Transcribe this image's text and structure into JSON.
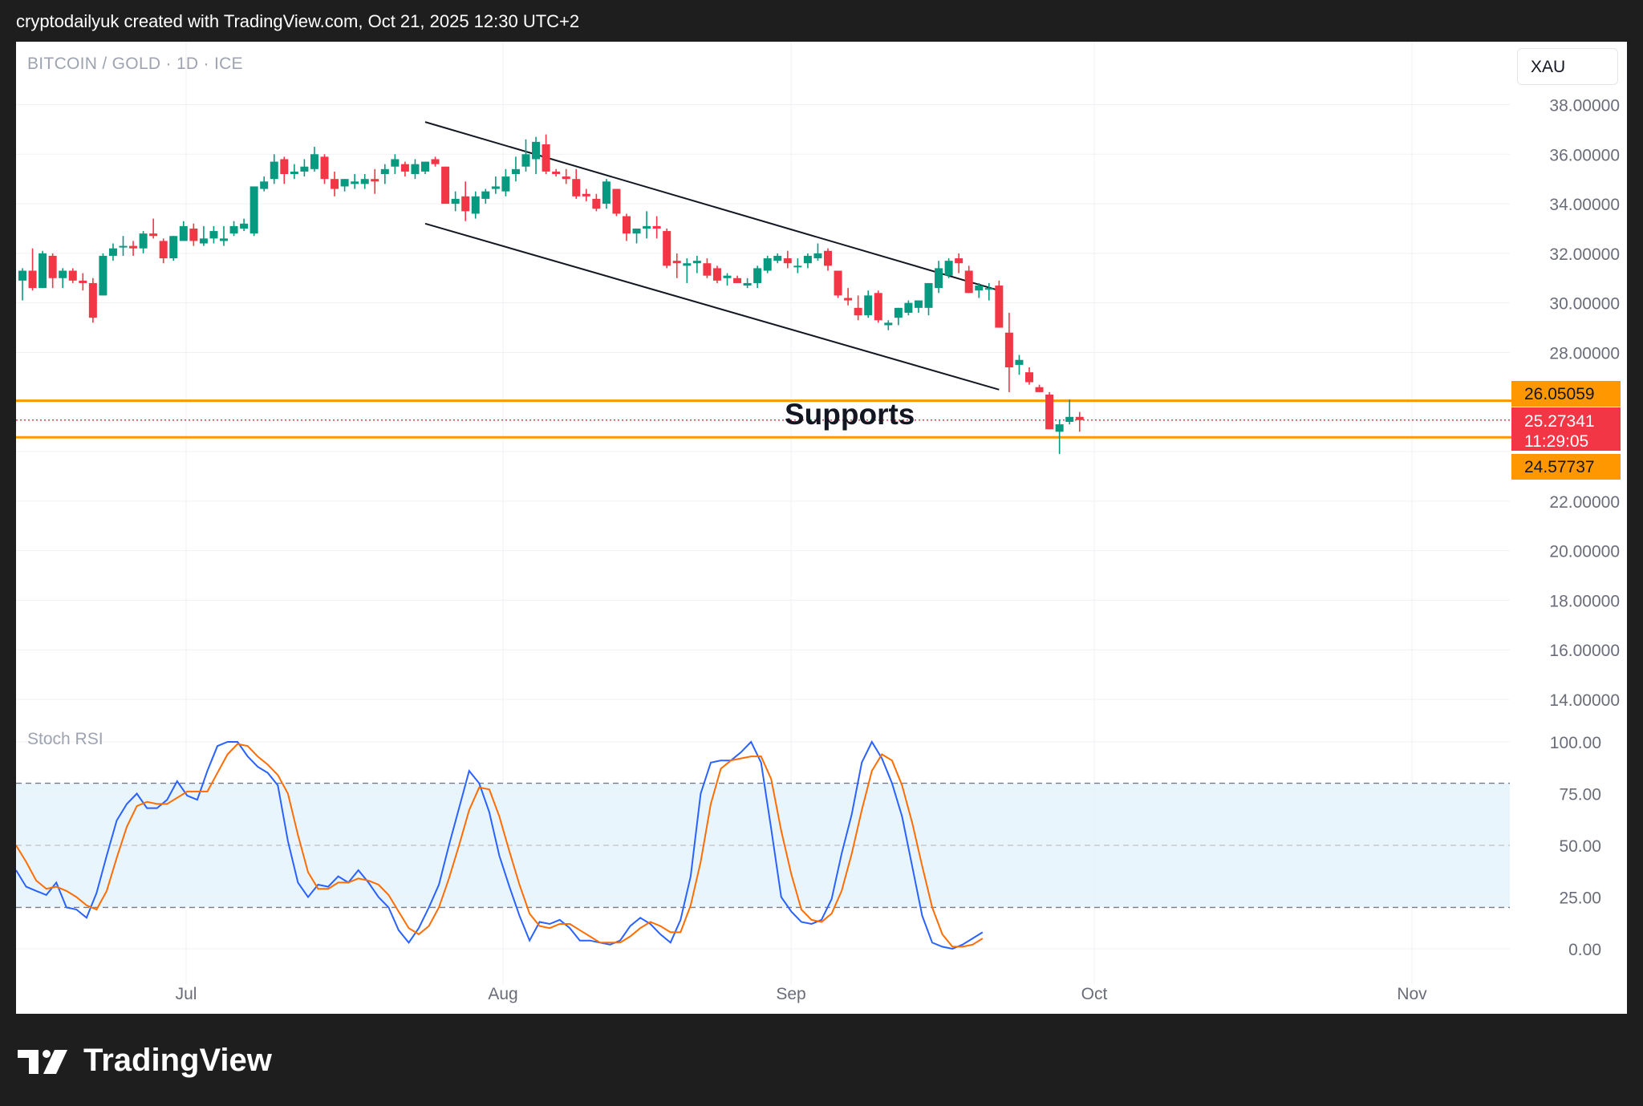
{
  "header": {
    "text": "cryptodailyuk created with TradingView.com, Oct 21, 2025 12:30 UTC+2"
  },
  "legend": {
    "symbol": "BITCOIN / GOLD · 1D · ICE"
  },
  "unit_button": {
    "label": "XAU"
  },
  "annotation": {
    "text": "Supports"
  },
  "indicator": {
    "label": "Stoch RSI"
  },
  "price_tags": {
    "resistance": "26.05059",
    "last_price": "25.27341",
    "countdown": "11:29:05",
    "support": "24.57737"
  },
  "footer": {
    "brand": "TradingView",
    "logo_icon": "tradingview-logo-icon"
  },
  "colors": {
    "up": "#089981",
    "down": "#f23645",
    "support_line": "#ff9800",
    "k_line": "#2962ff",
    "d_line": "#ff6d00",
    "band_fill": "#e3f2fd"
  },
  "chart_data": [
    {
      "type": "candlestick",
      "title": "BITCOIN / GOLD · 1D · ICE",
      "unit": "XAU",
      "x_ticks": [
        "Jul",
        "Aug",
        "Sep",
        "Oct",
        "Nov"
      ],
      "y_ticks": [
        "38.00000",
        "36.00000",
        "34.00000",
        "32.00000",
        "30.00000",
        "28.00000",
        "26.05059",
        "22.00000",
        "20.00000",
        "18.00000",
        "16.00000",
        "14.00000"
      ],
      "ylim": [
        13,
        39
      ],
      "grid": true,
      "start_date": "2025-06-11",
      "candles": [
        [
          30.9,
          31.4,
          30.1,
          31.3
        ],
        [
          31.3,
          32.2,
          30.5,
          30.6
        ],
        [
          30.6,
          32.1,
          30.6,
          32.0
        ],
        [
          31.9,
          32.0,
          30.6,
          31.0
        ],
        [
          31.0,
          31.4,
          30.6,
          31.3
        ],
        [
          31.3,
          31.4,
          30.8,
          30.9
        ],
        [
          30.9,
          31.2,
          30.5,
          30.8
        ],
        [
          30.8,
          31.0,
          29.2,
          29.4
        ],
        [
          30.3,
          32.0,
          30.3,
          31.9
        ],
        [
          31.9,
          32.4,
          31.7,
          32.2
        ],
        [
          32.3,
          32.7,
          31.9,
          32.3
        ],
        [
          32.3,
          32.5,
          31.9,
          32.2
        ],
        [
          32.2,
          32.9,
          32.0,
          32.8
        ],
        [
          32.8,
          33.4,
          32.6,
          32.7
        ],
        [
          32.5,
          32.6,
          31.6,
          31.8
        ],
        [
          31.8,
          32.7,
          31.7,
          32.7
        ],
        [
          32.5,
          33.3,
          32.5,
          33.1
        ],
        [
          33.0,
          33.2,
          32.3,
          32.5
        ],
        [
          32.4,
          33.1,
          32.3,
          32.6
        ],
        [
          32.6,
          33.1,
          32.4,
          32.9
        ],
        [
          32.5,
          33.1,
          32.3,
          32.6
        ],
        [
          32.8,
          33.3,
          32.7,
          33.1
        ],
        [
          33.0,
          33.4,
          32.9,
          33.2
        ],
        [
          32.8,
          34.7,
          32.7,
          34.7
        ],
        [
          34.6,
          35.1,
          34.5,
          34.9
        ],
        [
          35.0,
          36.0,
          34.8,
          35.7
        ],
        [
          35.8,
          35.9,
          34.8,
          35.2
        ],
        [
          35.2,
          35.6,
          35.0,
          35.3
        ],
        [
          35.3,
          35.8,
          35.1,
          35.5
        ],
        [
          35.4,
          36.3,
          35.3,
          36.0
        ],
        [
          35.9,
          36.0,
          34.8,
          35.0
        ],
        [
          35.0,
          35.3,
          34.3,
          34.6
        ],
        [
          34.7,
          35.0,
          34.5,
          35.0
        ],
        [
          34.8,
          35.2,
          34.6,
          34.9
        ],
        [
          34.8,
          35.2,
          34.6,
          35.0
        ],
        [
          35.0,
          35.4,
          34.4,
          34.9
        ],
        [
          35.2,
          35.6,
          34.8,
          35.4
        ],
        [
          35.5,
          36.0,
          35.2,
          35.8
        ],
        [
          35.6,
          35.7,
          35.1,
          35.3
        ],
        [
          35.2,
          35.8,
          35.0,
          35.6
        ],
        [
          35.3,
          35.7,
          35.2,
          35.7
        ],
        [
          35.8,
          35.9,
          35.5,
          35.6
        ],
        [
          35.5,
          35.5,
          34.0,
          34.0
        ],
        [
          34.0,
          34.5,
          33.7,
          34.2
        ],
        [
          34.3,
          34.9,
          33.3,
          33.7
        ],
        [
          33.6,
          34.5,
          33.4,
          34.3
        ],
        [
          34.2,
          34.6,
          34.0,
          34.5
        ],
        [
          34.6,
          35.1,
          34.4,
          34.7
        ],
        [
          34.5,
          35.4,
          34.3,
          35.1
        ],
        [
          35.2,
          35.9,
          34.9,
          35.4
        ],
        [
          35.5,
          36.6,
          35.3,
          36.0
        ],
        [
          35.8,
          36.7,
          35.2,
          36.5
        ],
        [
          36.4,
          36.8,
          35.2,
          35.3
        ],
        [
          35.3,
          35.4,
          35.1,
          35.2
        ],
        [
          35.1,
          35.4,
          34.8,
          35.0
        ],
        [
          35.0,
          35.4,
          34.2,
          34.3
        ],
        [
          34.4,
          34.6,
          34.1,
          34.3
        ],
        [
          34.2,
          34.4,
          33.7,
          33.8
        ],
        [
          34.0,
          35.0,
          33.8,
          34.9
        ],
        [
          34.6,
          34.6,
          33.5,
          33.6
        ],
        [
          33.5,
          33.6,
          32.5,
          32.8
        ],
        [
          32.8,
          33.0,
          32.4,
          33.0
        ],
        [
          33.0,
          33.7,
          32.6,
          33.1
        ],
        [
          33.1,
          33.5,
          32.6,
          33.0
        ],
        [
          32.9,
          33.0,
          31.4,
          31.5
        ],
        [
          31.7,
          32.0,
          31.0,
          31.6
        ],
        [
          31.5,
          31.8,
          30.8,
          31.6
        ],
        [
          31.6,
          31.9,
          31.2,
          31.7
        ],
        [
          31.6,
          31.8,
          31.0,
          31.1
        ],
        [
          31.4,
          31.5,
          30.8,
          30.9
        ],
        [
          31.0,
          31.2,
          30.7,
          31.1
        ],
        [
          31.0,
          31.1,
          30.8,
          30.8
        ],
        [
          30.7,
          31.0,
          30.6,
          30.8
        ],
        [
          30.8,
          31.5,
          30.6,
          31.4
        ],
        [
          31.3,
          31.9,
          31.2,
          31.8
        ],
        [
          31.7,
          32.0,
          31.6,
          31.9
        ],
        [
          31.8,
          32.1,
          31.4,
          31.6
        ],
        [
          31.5,
          31.8,
          31.2,
          31.5
        ],
        [
          31.6,
          32.0,
          31.4,
          31.9
        ],
        [
          31.8,
          32.4,
          31.7,
          32.0
        ],
        [
          32.1,
          32.2,
          31.3,
          31.5
        ],
        [
          31.3,
          31.3,
          30.2,
          30.3
        ],
        [
          30.2,
          30.6,
          29.9,
          30.1
        ],
        [
          29.8,
          30.3,
          29.3,
          29.5
        ],
        [
          29.5,
          30.5,
          29.4,
          30.3
        ],
        [
          30.4,
          30.5,
          29.2,
          29.3
        ],
        [
          29.1,
          29.3,
          28.9,
          29.2
        ],
        [
          29.4,
          29.8,
          29.1,
          29.8
        ],
        [
          29.6,
          30.1,
          29.5,
          30.0
        ],
        [
          29.8,
          30.1,
          29.6,
          30.1
        ],
        [
          29.8,
          30.8,
          29.5,
          30.8
        ],
        [
          30.6,
          31.7,
          30.4,
          31.4
        ],
        [
          31.1,
          31.8,
          31.0,
          31.7
        ],
        [
          31.8,
          32.0,
          31.2,
          31.6
        ],
        [
          31.3,
          31.5,
          30.4,
          30.4
        ],
        [
          30.5,
          30.8,
          30.2,
          30.7
        ],
        [
          30.6,
          30.8,
          30.1,
          30.6
        ],
        [
          30.7,
          30.9,
          29.0,
          29.0
        ],
        [
          28.8,
          29.6,
          26.4,
          27.4
        ],
        [
          27.5,
          27.9,
          27.1,
          27.7
        ],
        [
          27.2,
          27.4,
          26.7,
          26.8
        ],
        [
          26.6,
          26.7,
          26.4,
          26.4
        ],
        [
          26.3,
          26.4,
          24.9,
          24.9
        ],
        [
          24.8,
          25.3,
          23.9,
          25.1
        ],
        [
          25.2,
          26.1,
          25.1,
          25.4
        ],
        [
          25.4,
          25.6,
          24.8,
          25.27
        ]
      ]
    },
    {
      "type": "line",
      "title": "Stoch RSI",
      "y_ticks": [
        "100.00",
        "75.00",
        "50.00",
        "25.00",
        "0.00"
      ],
      "ylim": [
        -5,
        110
      ],
      "bands": [
        80,
        50,
        20
      ],
      "start_date": "2025-06-11",
      "series": [
        {
          "name": "K",
          "values": [
            38,
            30,
            28,
            26,
            32,
            20,
            19,
            15,
            27,
            45,
            62,
            70,
            75,
            68,
            68,
            72,
            81,
            74,
            72,
            86,
            98,
            100,
            100,
            93,
            88,
            85,
            79,
            52,
            32,
            25,
            31,
            30,
            35,
            32,
            38,
            32,
            25,
            20,
            9,
            3,
            10,
            20,
            31,
            50,
            68,
            86,
            80,
            66,
            45,
            30,
            16,
            4,
            13,
            12,
            14,
            10,
            4,
            4,
            3,
            2,
            4,
            11,
            15,
            12,
            7,
            3,
            14,
            35,
            75,
            90,
            91,
            91,
            95,
            100,
            90,
            58,
            25,
            18,
            13,
            12,
            14,
            24,
            46,
            65,
            90,
            100,
            92,
            80,
            64,
            40,
            16,
            3,
            1,
            0,
            2,
            5,
            8
          ]
        },
        {
          "name": "D",
          "values": [
            50,
            42,
            33,
            29,
            30,
            28,
            25,
            21,
            19,
            28,
            44,
            59,
            69,
            71,
            70,
            70,
            73,
            76,
            76,
            76,
            85,
            94,
            99,
            98,
            93,
            89,
            84,
            75,
            55,
            37,
            29,
            29,
            32,
            32,
            34,
            33,
            31,
            26,
            18,
            10,
            7,
            11,
            20,
            34,
            50,
            67,
            78,
            77,
            64,
            47,
            31,
            17,
            11,
            10,
            12,
            12,
            9,
            6,
            3,
            3,
            3,
            6,
            10,
            13,
            11,
            8,
            8,
            21,
            42,
            70,
            87,
            91,
            92,
            93,
            93,
            82,
            57,
            36,
            19,
            14,
            13,
            17,
            28,
            46,
            67,
            86,
            94,
            91,
            79,
            61,
            40,
            20,
            7,
            1,
            1,
            2,
            5
          ]
        }
      ]
    }
  ]
}
